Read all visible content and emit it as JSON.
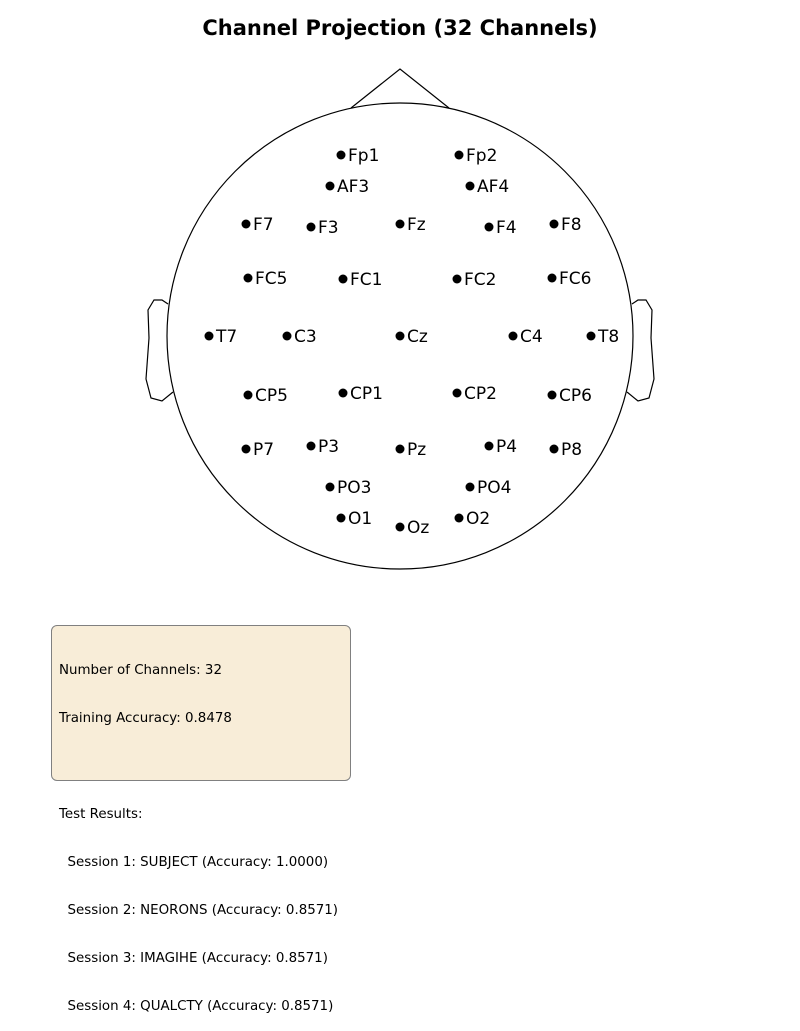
{
  "title": "Channel Projection (32 Channels)",
  "channels": [
    {
      "label": "Fp1"
    },
    {
      "label": "Fp2"
    },
    {
      "label": "AF3"
    },
    {
      "label": "AF4"
    },
    {
      "label": "F7"
    },
    {
      "label": "F3"
    },
    {
      "label": "Fz"
    },
    {
      "label": "F4"
    },
    {
      "label": "F8"
    },
    {
      "label": "FC5"
    },
    {
      "label": "FC1"
    },
    {
      "label": "FC2"
    },
    {
      "label": "FC6"
    },
    {
      "label": "T7"
    },
    {
      "label": "C3"
    },
    {
      "label": "Cz"
    },
    {
      "label": "C4"
    },
    {
      "label": "T8"
    },
    {
      "label": "CP5"
    },
    {
      "label": "CP1"
    },
    {
      "label": "CP2"
    },
    {
      "label": "CP6"
    },
    {
      "label": "P7"
    },
    {
      "label": "P3"
    },
    {
      "label": "Pz"
    },
    {
      "label": "P4"
    },
    {
      "label": "P8"
    },
    {
      "label": "PO3"
    },
    {
      "label": "PO4"
    },
    {
      "label": "O1"
    },
    {
      "label": "Oz"
    },
    {
      "label": "O2"
    }
  ],
  "info": {
    "num_channels": "Number of Channels: 32",
    "training_accuracy": "Training Accuracy: 0.8478",
    "test_results_header": "Test Results:",
    "sessions": [
      "  Session 1: SUBJECT (Accuracy: 1.0000)",
      "  Session 2: NEORONS (Accuracy: 0.8571)",
      "  Session 3: IMAGIHE (Accuracy: 0.8571)",
      "  Session 4: QUALCTY (Accuracy: 0.8571)"
    ]
  }
}
